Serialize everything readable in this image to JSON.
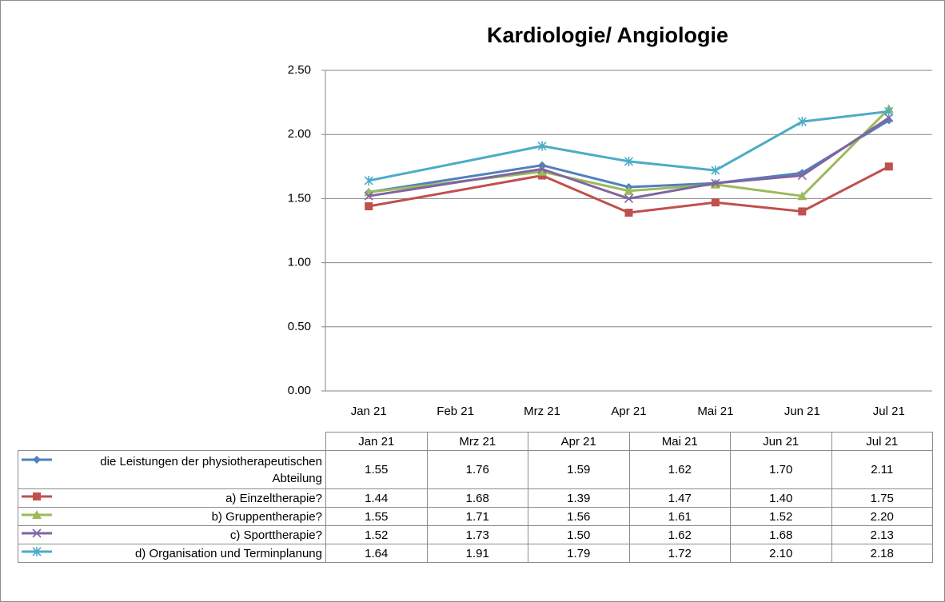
{
  "chart_data": {
    "type": "line",
    "title": "Kardiologie/ Angiologie",
    "categories": [
      "Jan 21",
      "Feb 21",
      "Mrz 21",
      "Apr 21",
      "Mai 21",
      "Jun 21",
      "Jul 21"
    ],
    "series": [
      {
        "name": "die Leistungen der physiotherapeutischen Abteilung",
        "color": "#4f81bd",
        "marker": "diamond",
        "values": [
          1.55,
          null,
          1.76,
          1.59,
          1.62,
          1.7,
          2.11
        ],
        "value_labels": [
          "1.55",
          null,
          "1.76",
          "1.59",
          "1.62",
          "1.70",
          "2.11"
        ]
      },
      {
        "name": "a) Einzeltherapie?",
        "color": "#c0504d",
        "marker": "square",
        "values": [
          1.44,
          null,
          1.68,
          1.39,
          1.47,
          1.4,
          1.75
        ],
        "value_labels": [
          "1.44",
          null,
          "1.68",
          "1.39",
          "1.47",
          "1.40",
          "1.75"
        ]
      },
      {
        "name": "b) Gruppentherapie?",
        "color": "#9bbb59",
        "marker": "triangle",
        "values": [
          1.55,
          null,
          1.71,
          1.56,
          1.61,
          1.52,
          2.2
        ],
        "value_labels": [
          "1.55",
          null,
          "1.71",
          "1.56",
          "1.61",
          "1.52",
          "2.20"
        ]
      },
      {
        "name": "c) Sporttherapie?",
        "color": "#8064a2",
        "marker": "x",
        "values": [
          1.52,
          null,
          1.73,
          1.5,
          1.62,
          1.68,
          2.13
        ],
        "value_labels": [
          "1.52",
          null,
          "1.73",
          "1.50",
          "1.62",
          "1.68",
          "2.13"
        ]
      },
      {
        "name": "d) Organisation und Terminplanung",
        "color": "#4bacc6",
        "marker": "star",
        "values": [
          1.64,
          null,
          1.91,
          1.79,
          1.72,
          2.1,
          2.18
        ],
        "value_labels": [
          "1.64",
          null,
          "1.91",
          "1.79",
          "1.72",
          "2.10",
          "2.18"
        ]
      }
    ],
    "ylim": [
      0,
      2.5
    ],
    "yticks": [
      {
        "value": 0,
        "label": "0.00"
      },
      {
        "value": 0.5,
        "label": "0.50"
      },
      {
        "value": 1,
        "label": "1.00"
      },
      {
        "value": 1.5,
        "label": "1.50"
      },
      {
        "value": 2,
        "label": "2.00"
      },
      {
        "value": 2.5,
        "label": "2.50"
      }
    ],
    "grid": true,
    "data_table": true
  }
}
